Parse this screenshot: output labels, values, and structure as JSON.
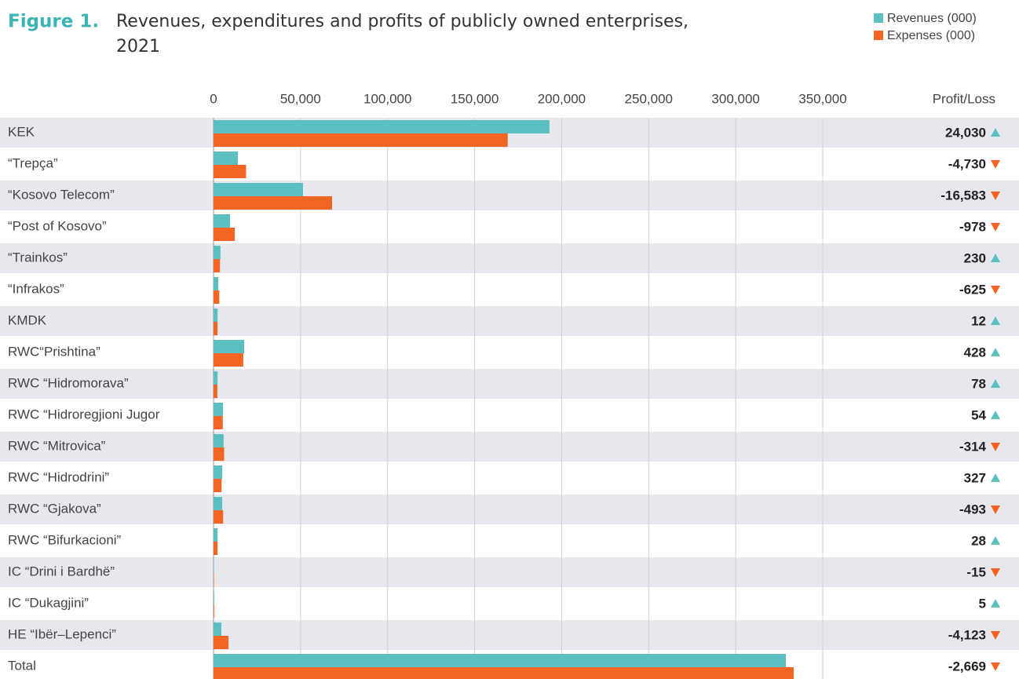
{
  "chart_data": {
    "type": "bar",
    "orientation": "horizontal",
    "figure_label": "Figure 1.",
    "title": "Revenues, expenditures and profits of publicly owned enterprises,",
    "title_line2": "2021",
    "categories": [
      "KEK",
      "“Trepça”",
      "“Kosovo Telecom”",
      "“Post of Kosovo”",
      "“Trainkos”",
      "“Infrakos”",
      "KMDK",
      "RWC“Prishtina”",
      "RWC “Hidromorava”",
      "RWC “Hidroregjioni Jugor",
      "RWC “Mitrovica”",
      "RWC “Hidrodrini”",
      "RWC “Gjakova”",
      "RWC “Bifurkacioni”",
      "IC “Drini i Bardhë”",
      "IC “Dukagjini”",
      "HE “Ibër–Lepenci”",
      "Total"
    ],
    "series": [
      {
        "name": "Revenues (000)",
        "color": "#5bbfbf",
        "values": [
          193000,
          14000,
          51400,
          9500,
          4000,
          2700,
          2300,
          17600,
          2300,
          5400,
          5800,
          5000,
          5000,
          2300,
          200,
          400,
          4500,
          328800
        ]
      },
      {
        "name": "Expenses (000)",
        "color": "#f26522",
        "values": [
          169000,
          18700,
          68100,
          12200,
          3700,
          3300,
          2300,
          17100,
          2200,
          5300,
          6100,
          4600,
          5500,
          2300,
          215,
          400,
          8600,
          333300
        ]
      }
    ],
    "profit": {
      "name": "Profit/Loss",
      "up_color": "#5bbfbf",
      "down_color": "#f26522",
      "values": [
        24030,
        -4730,
        -16583,
        -978,
        230,
        -625,
        12,
        428,
        78,
        54,
        -314,
        327,
        -493,
        28,
        -15,
        5,
        -4123,
        -2669
      ],
      "value_labels": [
        "24,030",
        "-4,730",
        "-16,583",
        "-978",
        "230",
        "-625",
        "12",
        "428",
        "78",
        "54",
        "-314",
        "327",
        "-493",
        "28",
        "-15",
        "5",
        "-4,123",
        "-2,669"
      ]
    },
    "xlim": [
      0,
      350000
    ],
    "xticks": [
      0,
      {
        "value": 50000,
        "label": "50,000"
      },
      {
        "value": 100000,
        "label": "100,000"
      },
      {
        "value": 150000,
        "label": "150,000"
      },
      {
        "value": 200000,
        "label": "200,000"
      },
      {
        "value": 250000,
        "label": "250,000"
      },
      {
        "value": 300000,
        "label": "300,000"
      },
      {
        "value": 350000,
        "label": "350,000"
      }
    ],
    "grid": true
  }
}
